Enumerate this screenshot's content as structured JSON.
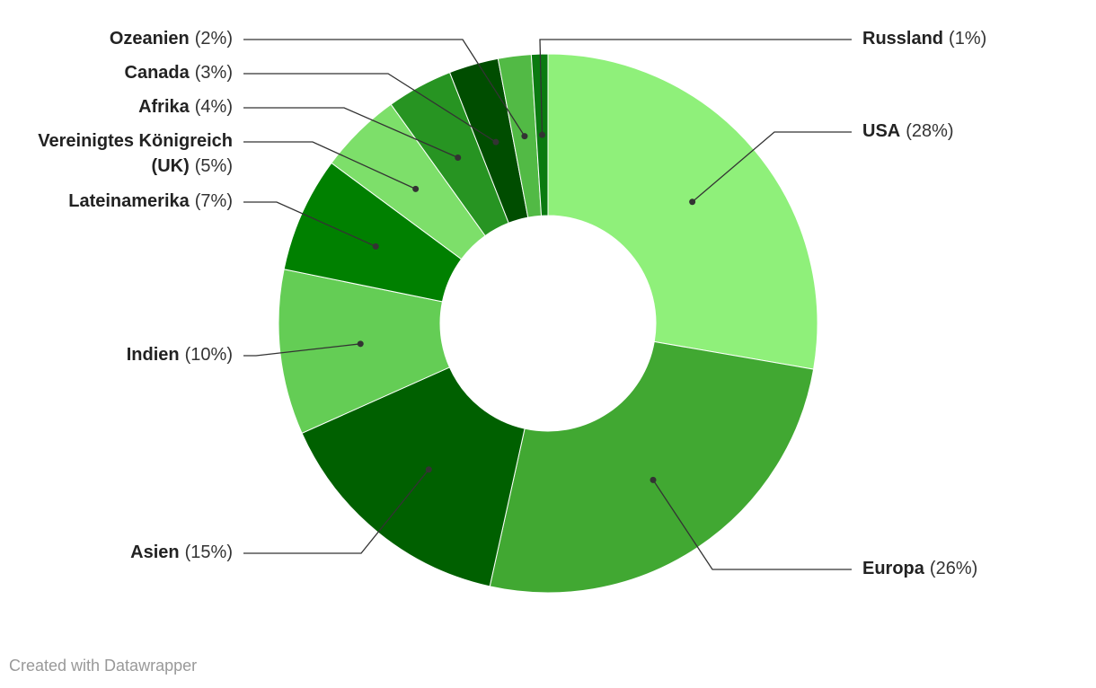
{
  "chart_data": {
    "type": "donut",
    "categories": [
      "USA",
      "Europa",
      "Asien",
      "Indien",
      "Lateinamerika",
      "Vereinigtes Königreich (UK)",
      "Afrika",
      "Canada",
      "Ozeanien",
      "Russland"
    ],
    "values": [
      28,
      26,
      15,
      10,
      7,
      5,
      4,
      3,
      2,
      1
    ],
    "value_labels": [
      "(28%)",
      "(26%)",
      "(15%)",
      "(10%)",
      "(7%)",
      "(5%)",
      "(4%)",
      "(3%)",
      "(2%)",
      "(1%)"
    ],
    "colors": [
      "#8ff07a",
      "#41a832",
      "#006000",
      "#64cd55",
      "#008000",
      "#7ddf6a",
      "#279422",
      "#004d00",
      "#52ba45",
      "#0a7a10"
    ],
    "footer": "Created with Datawrapper"
  }
}
